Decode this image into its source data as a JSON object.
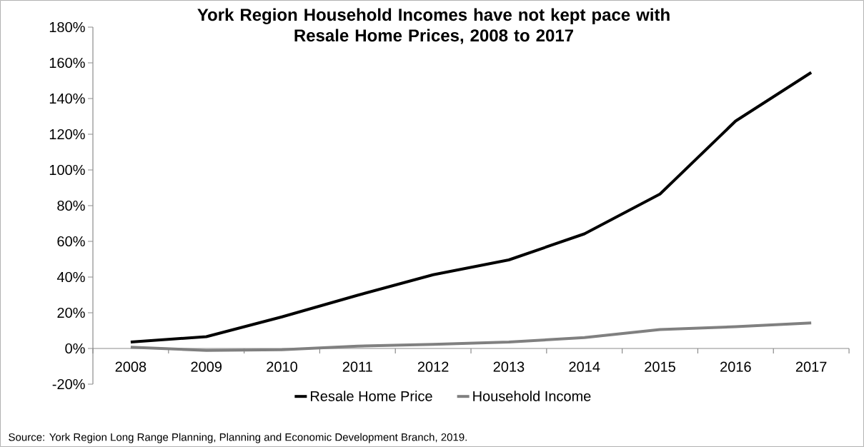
{
  "chart_data": {
    "type": "line",
    "title": "York Region Household Incomes have not kept pace with\nResale Home Prices, 2008 to 2017",
    "categories": [
      "2008",
      "2009",
      "2010",
      "2011",
      "2012",
      "2013",
      "2014",
      "2015",
      "2016",
      "2017"
    ],
    "series": [
      {
        "name": "Resale Home Price",
        "color": "#000000",
        "values": [
          3.6,
          6.6,
          17.7,
          29.8,
          41.3,
          49.6,
          64.2,
          86.5,
          127.4,
          154.6
        ]
      },
      {
        "name": "Household Income",
        "color": "#808080",
        "values": [
          0.7,
          -1.1,
          -0.7,
          1.3,
          2.3,
          3.6,
          6.1,
          10.6,
          12.2,
          14.3
        ]
      }
    ],
    "ylim": [
      -20,
      180
    ],
    "yticks": [
      {
        "value": -20,
        "label": "-20%"
      },
      {
        "value": 0,
        "label": "0%"
      },
      {
        "value": 20,
        "label": "20%"
      },
      {
        "value": 40,
        "label": "40%"
      },
      {
        "value": 60,
        "label": "60%"
      },
      {
        "value": 80,
        "label": "80%"
      },
      {
        "value": 100,
        "label": "100%"
      },
      {
        "value": 120,
        "label": "120%"
      },
      {
        "value": 140,
        "label": "140%"
      },
      {
        "value": 160,
        "label": "160%"
      },
      {
        "value": 180,
        "label": "180%"
      }
    ],
    "grid": false,
    "legend": "bottom",
    "line_style": "solid",
    "annotations": [
      "Source: York Region Long Range Planning, Planning and Economic Development Branch, 2019."
    ]
  }
}
